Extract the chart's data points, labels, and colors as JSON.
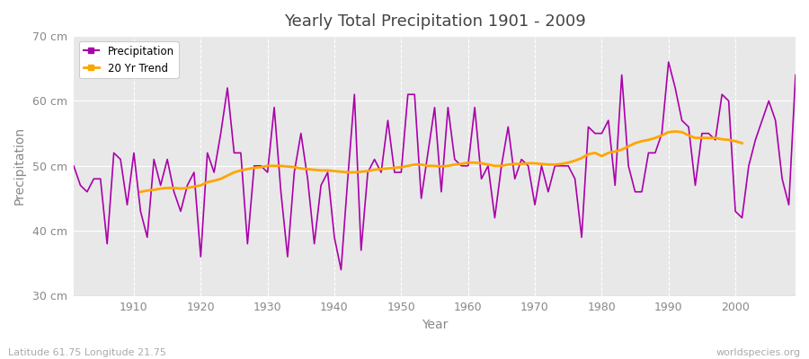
{
  "title": "Yearly Total Precipitation 1901 - 2009",
  "xlabel": "Year",
  "ylabel": "Precipitation",
  "lat_lon_label": "Latitude 61.75 Longitude 21.75",
  "watermark": "worldspecies.org",
  "ylim": [
    30,
    70
  ],
  "xlim": [
    1901,
    2009
  ],
  "yticks": [
    30,
    40,
    50,
    60,
    70
  ],
  "ytick_labels": [
    "30 cm",
    "40 cm",
    "50 cm",
    "60 cm",
    "70 cm"
  ],
  "xticks": [
    1910,
    1920,
    1930,
    1940,
    1950,
    1960,
    1970,
    1980,
    1990,
    2000
  ],
  "precip_color": "#aa00aa",
  "trend_color": "#FFA500",
  "fig_bg_color": "#ffffff",
  "plot_bg_color": "#e8e8e8",
  "grid_color": "#ffffff",
  "legend_bg": "#ffffff",
  "years": [
    1901,
    1902,
    1903,
    1904,
    1905,
    1906,
    1907,
    1908,
    1909,
    1910,
    1911,
    1912,
    1913,
    1914,
    1915,
    1916,
    1917,
    1918,
    1919,
    1920,
    1921,
    1922,
    1923,
    1924,
    1925,
    1926,
    1927,
    1928,
    1929,
    1930,
    1931,
    1932,
    1933,
    1934,
    1935,
    1936,
    1937,
    1938,
    1939,
    1940,
    1941,
    1942,
    1943,
    1944,
    1945,
    1946,
    1947,
    1948,
    1949,
    1950,
    1951,
    1952,
    1953,
    1954,
    1955,
    1956,
    1957,
    1958,
    1959,
    1960,
    1961,
    1962,
    1963,
    1964,
    1965,
    1966,
    1967,
    1968,
    1969,
    1970,
    1971,
    1972,
    1973,
    1974,
    1975,
    1976,
    1977,
    1978,
    1979,
    1980,
    1981,
    1982,
    1983,
    1984,
    1985,
    1986,
    1987,
    1988,
    1989,
    1990,
    1991,
    1992,
    1993,
    1994,
    1995,
    1996,
    1997,
    1998,
    1999,
    2000,
    2001,
    2002,
    2003,
    2004,
    2005,
    2006,
    2007,
    2008,
    2009
  ],
  "precip": [
    50,
    47,
    46,
    48,
    48,
    38,
    52,
    51,
    44,
    52,
    43,
    39,
    51,
    47,
    51,
    46,
    43,
    47,
    49,
    36,
    52,
    49,
    55,
    62,
    52,
    52,
    38,
    50,
    50,
    49,
    59,
    46,
    36,
    49,
    55,
    48,
    38,
    47,
    49,
    39,
    34,
    48,
    61,
    37,
    49,
    51,
    49,
    57,
    49,
    49,
    61,
    61,
    45,
    52,
    59,
    46,
    59,
    51,
    50,
    50,
    59,
    48,
    50,
    42,
    50,
    56,
    48,
    51,
    50,
    44,
    50,
    46,
    50,
    50,
    50,
    48,
    39,
    56,
    55,
    55,
    57,
    47,
    64,
    50,
    46,
    46,
    52,
    52,
    55,
    66,
    62,
    57,
    56,
    47,
    55,
    55,
    54,
    61,
    60,
    43,
    42,
    50,
    54,
    57,
    60,
    57,
    48,
    44,
    64
  ],
  "trend": [
    null,
    null,
    null,
    null,
    null,
    null,
    null,
    null,
    null,
    null,
    46.0,
    46.2,
    46.3,
    46.5,
    46.6,
    46.6,
    46.5,
    46.6,
    46.8,
    47.0,
    47.5,
    47.7,
    48.0,
    48.5,
    49.0,
    49.3,
    49.5,
    49.7,
    49.8,
    50.0,
    50.0,
    50.0,
    49.9,
    49.8,
    49.6,
    49.5,
    49.4,
    49.3,
    49.3,
    49.2,
    49.1,
    49.0,
    49.0,
    49.1,
    49.2,
    49.4,
    49.5,
    49.6,
    49.7,
    49.8,
    50.0,
    50.2,
    50.2,
    50.0,
    50.0,
    49.9,
    50.0,
    50.2,
    50.3,
    50.5,
    50.5,
    50.4,
    50.2,
    50.0,
    50.0,
    50.2,
    50.3,
    50.3,
    50.4,
    50.4,
    50.3,
    50.2,
    50.2,
    50.3,
    50.5,
    50.8,
    51.2,
    51.8,
    52.0,
    51.5,
    52.0,
    52.2,
    52.5,
    53.0,
    53.5,
    53.8,
    54.0,
    54.3,
    54.7,
    55.2,
    55.3,
    55.2,
    54.7,
    54.3,
    54.3,
    54.3,
    54.3,
    54.1,
    54.0,
    53.8,
    53.5,
    null,
    null,
    null,
    null,
    null,
    null,
    null,
    null
  ]
}
